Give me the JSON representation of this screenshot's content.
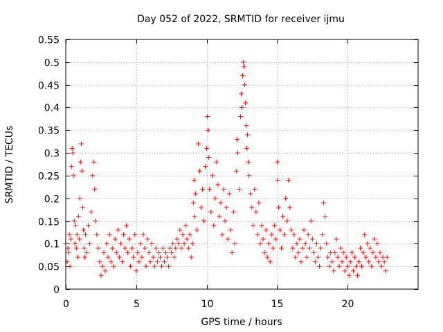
{
  "chart_data": {
    "type": "scatter",
    "title": "Day 052 of 2022, SRMTID for receiver ijmu",
    "xlabel": "GPS time / hours",
    "ylabel": "SRMTID / TECUs",
    "xlim": [
      0,
      25
    ],
    "ylim": [
      0,
      0.55
    ],
    "xticks": [
      0,
      5,
      10,
      15,
      20
    ],
    "yticks": [
      0,
      0.05,
      0.1,
      0.15,
      0.2,
      0.25,
      0.3,
      0.35,
      0.4,
      0.45,
      0.5,
      0.55
    ],
    "xtick_labels": [
      "0",
      "5",
      "10",
      "15",
      "20"
    ],
    "ytick_labels": [
      "0",
      "0.05",
      "0.1",
      "0.15",
      "0.2",
      "0.25",
      "0.3",
      "0.35",
      "0.4",
      "0.45",
      "0.5",
      "0.55"
    ],
    "grid": true,
    "marker": "+",
    "color": "#ff0000",
    "series": [
      {
        "name": "SRMTID",
        "points": [
          [
            0.0,
            0.1
          ],
          [
            0.1,
            0.06
          ],
          [
            0.15,
            0.09
          ],
          [
            0.2,
            0.08
          ],
          [
            0.25,
            0.12
          ],
          [
            0.3,
            0.05
          ],
          [
            0.35,
            0.11
          ],
          [
            0.4,
            0.27
          ],
          [
            0.45,
            0.31
          ],
          [
            0.5,
            0.3
          ],
          [
            0.55,
            0.25
          ],
          [
            0.6,
            0.15
          ],
          [
            0.65,
            0.1
          ],
          [
            0.7,
            0.14
          ],
          [
            0.75,
            0.09
          ],
          [
            0.8,
            0.12
          ],
          [
            0.85,
            0.07
          ],
          [
            0.9,
            0.16
          ],
          [
            0.95,
            0.11
          ],
          [
            1.0,
            0.2
          ],
          [
            1.05,
            0.28
          ],
          [
            1.1,
            0.32
          ],
          [
            1.15,
            0.26
          ],
          [
            1.2,
            0.18
          ],
          [
            1.25,
            0.13
          ],
          [
            1.3,
            0.09
          ],
          [
            1.35,
            0.07
          ],
          [
            1.4,
            0.12
          ],
          [
            1.5,
            0.08
          ],
          [
            1.6,
            0.14
          ],
          [
            1.7,
            0.1
          ],
          [
            1.8,
            0.17
          ],
          [
            1.9,
            0.25
          ],
          [
            2.0,
            0.28
          ],
          [
            2.05,
            0.22
          ],
          [
            2.1,
            0.15
          ],
          [
            2.2,
            0.12
          ],
          [
            2.3,
            0.09
          ],
          [
            2.4,
            0.06
          ],
          [
            2.5,
            0.03
          ],
          [
            2.6,
            0.05
          ],
          [
            2.7,
            0.08
          ],
          [
            2.8,
            0.04
          ],
          [
            2.9,
            0.1
          ],
          [
            3.0,
            0.07
          ],
          [
            3.1,
            0.12
          ],
          [
            3.2,
            0.06
          ],
          [
            3.3,
            0.09
          ],
          [
            3.4,
            0.05
          ],
          [
            3.5,
            0.11
          ],
          [
            3.6,
            0.08
          ],
          [
            3.7,
            0.13
          ],
          [
            3.8,
            0.07
          ],
          [
            3.9,
            0.1
          ],
          [
            4.0,
            0.06
          ],
          [
            4.1,
            0.12
          ],
          [
            4.2,
            0.09
          ],
          [
            4.3,
            0.14
          ],
          [
            4.4,
            0.08
          ],
          [
            4.5,
            0.11
          ],
          [
            4.6,
            0.05
          ],
          [
            4.7,
            0.09
          ],
          [
            4.8,
            0.07
          ],
          [
            4.9,
            0.12
          ],
          [
            5.0,
            0.04
          ],
          [
            5.1,
            0.08
          ],
          [
            5.2,
            0.06
          ],
          [
            5.3,
            0.1
          ],
          [
            5.4,
            0.07
          ],
          [
            5.5,
            0.12
          ],
          [
            5.6,
            0.09
          ],
          [
            5.7,
            0.05
          ],
          [
            5.8,
            0.11
          ],
          [
            5.9,
            0.08
          ],
          [
            6.0,
            0.06
          ],
          [
            6.1,
            0.1
          ],
          [
            6.2,
            0.07
          ],
          [
            6.3,
            0.05
          ],
          [
            6.4,
            0.09
          ],
          [
            6.5,
            0.06
          ],
          [
            6.6,
            0.08
          ],
          [
            6.7,
            0.07
          ],
          [
            6.8,
            0.05
          ],
          [
            6.9,
            0.09
          ],
          [
            7.0,
            0.06
          ],
          [
            7.1,
            0.08
          ],
          [
            7.2,
            0.07
          ],
          [
            7.3,
            0.05
          ],
          [
            7.4,
            0.09
          ],
          [
            7.5,
            0.08
          ],
          [
            7.6,
            0.1
          ],
          [
            7.7,
            0.07
          ],
          [
            7.8,
            0.09
          ],
          [
            7.9,
            0.11
          ],
          [
            8.0,
            0.1
          ],
          [
            8.1,
            0.13
          ],
          [
            8.2,
            0.09
          ],
          [
            8.3,
            0.12
          ],
          [
            8.4,
            0.1
          ],
          [
            8.5,
            0.14
          ],
          [
            8.6,
            0.11
          ],
          [
            8.7,
            0.09
          ],
          [
            8.8,
            0.12
          ],
          [
            8.9,
            0.07
          ],
          [
            9.0,
            0.1
          ],
          [
            9.05,
            0.19
          ],
          [
            9.1,
            0.24
          ],
          [
            9.15,
            0.16
          ],
          [
            9.2,
            0.21
          ],
          [
            9.3,
            0.13
          ],
          [
            9.4,
            0.32
          ],
          [
            9.5,
            0.26
          ],
          [
            9.6,
            0.18
          ],
          [
            9.7,
            0.22
          ],
          [
            9.8,
            0.15
          ],
          [
            9.9,
            0.27
          ],
          [
            10.0,
            0.31
          ],
          [
            10.05,
            0.38
          ],
          [
            10.1,
            0.35
          ],
          [
            10.15,
            0.29
          ],
          [
            10.2,
            0.22
          ],
          [
            10.3,
            0.17
          ],
          [
            10.4,
            0.25
          ],
          [
            10.5,
            0.14
          ],
          [
            10.6,
            0.2
          ],
          [
            10.7,
            0.28
          ],
          [
            10.8,
            0.23
          ],
          [
            10.9,
            0.16
          ],
          [
            11.0,
            0.19
          ],
          [
            11.1,
            0.12
          ],
          [
            11.2,
            0.22
          ],
          [
            11.3,
            0.15
          ],
          [
            11.4,
            0.18
          ],
          [
            11.5,
            0.11
          ],
          [
            11.6,
            0.21
          ],
          [
            11.7,
            0.13
          ],
          [
            11.8,
            0.08
          ],
          [
            11.9,
            0.17
          ],
          [
            12.0,
            0.1
          ],
          [
            12.1,
            0.26
          ],
          [
            12.15,
            0.33
          ],
          [
            12.2,
            0.3
          ],
          [
            12.3,
            0.22
          ],
          [
            12.4,
            0.38
          ],
          [
            12.45,
            0.43
          ],
          [
            12.5,
            0.4
          ],
          [
            12.55,
            0.47
          ],
          [
            12.6,
            0.5
          ],
          [
            12.65,
            0.49
          ],
          [
            12.7,
            0.45
          ],
          [
            12.75,
            0.41
          ],
          [
            12.8,
            0.36
          ],
          [
            12.85,
            0.31
          ],
          [
            12.9,
            0.34
          ],
          [
            12.95,
            0.28
          ],
          [
            13.0,
            0.25
          ],
          [
            13.1,
            0.21
          ],
          [
            13.2,
            0.18
          ],
          [
            13.3,
            0.14
          ],
          [
            13.4,
            0.22
          ],
          [
            13.5,
            0.17
          ],
          [
            13.6,
            0.12
          ],
          [
            13.7,
            0.19
          ],
          [
            13.8,
            0.1
          ],
          [
            13.9,
            0.14
          ],
          [
            14.0,
            0.11
          ],
          [
            14.1,
            0.08
          ],
          [
            14.2,
            0.13
          ],
          [
            14.3,
            0.07
          ],
          [
            14.4,
            0.1
          ],
          [
            14.5,
            0.06
          ],
          [
            14.6,
            0.12
          ],
          [
            14.7,
            0.09
          ],
          [
            14.8,
            0.14
          ],
          [
            14.9,
            0.11
          ],
          [
            15.0,
            0.28
          ],
          [
            15.05,
            0.24
          ],
          [
            15.1,
            0.18
          ],
          [
            15.2,
            0.13
          ],
          [
            15.3,
            0.09
          ],
          [
            15.4,
            0.16
          ],
          [
            15.5,
            0.12
          ],
          [
            15.6,
            0.2
          ],
          [
            15.7,
            0.15
          ],
          [
            15.8,
            0.24
          ],
          [
            15.9,
            0.18
          ],
          [
            16.0,
            0.13
          ],
          [
            16.1,
            0.09
          ],
          [
            16.2,
            0.12
          ],
          [
            16.3,
            0.07
          ],
          [
            16.4,
            0.1
          ],
          [
            16.5,
            0.08
          ],
          [
            16.6,
            0.11
          ],
          [
            16.7,
            0.06
          ],
          [
            16.8,
            0.09
          ],
          [
            16.9,
            0.13
          ],
          [
            17.0,
            0.1
          ],
          [
            17.1,
            0.07
          ],
          [
            17.2,
            0.12
          ],
          [
            17.3,
            0.09
          ],
          [
            17.4,
            0.15
          ],
          [
            17.5,
            0.11
          ],
          [
            17.6,
            0.08
          ],
          [
            17.7,
            0.06
          ],
          [
            17.8,
            0.1
          ],
          [
            17.9,
            0.07
          ],
          [
            18.0,
            0.05
          ],
          [
            18.1,
            0.09
          ],
          [
            18.2,
            0.12
          ],
          [
            18.3,
            0.19
          ],
          [
            18.4,
            0.16
          ],
          [
            18.5,
            0.1
          ],
          [
            18.6,
            0.07
          ],
          [
            18.7,
            0.05
          ],
          [
            18.8,
            0.08
          ],
          [
            18.9,
            0.06
          ],
          [
            19.0,
            0.04
          ],
          [
            19.1,
            0.08
          ],
          [
            19.2,
            0.11
          ],
          [
            19.3,
            0.07
          ],
          [
            19.4,
            0.05
          ],
          [
            19.5,
            0.09
          ],
          [
            19.6,
            0.06
          ],
          [
            19.7,
            0.08
          ],
          [
            19.8,
            0.04
          ],
          [
            19.9,
            0.07
          ],
          [
            20.0,
            0.05
          ],
          [
            20.1,
            0.03
          ],
          [
            20.2,
            0.06
          ],
          [
            20.3,
            0.08
          ],
          [
            20.4,
            0.04
          ],
          [
            20.5,
            0.07
          ],
          [
            20.6,
            0.05
          ],
          [
            20.7,
            0.03
          ],
          [
            20.8,
            0.06
          ],
          [
            20.9,
            0.09
          ],
          [
            21.0,
            0.05
          ],
          [
            21.1,
            0.08
          ],
          [
            21.2,
            0.12
          ],
          [
            21.3,
            0.07
          ],
          [
            21.4,
            0.1
          ],
          [
            21.5,
            0.06
          ],
          [
            21.6,
            0.09
          ],
          [
            21.7,
            0.05
          ],
          [
            21.8,
            0.08
          ],
          [
            21.9,
            0.11
          ],
          [
            22.0,
            0.07
          ],
          [
            22.1,
            0.1
          ],
          [
            22.2,
            0.06
          ],
          [
            22.3,
            0.08
          ],
          [
            22.4,
            0.05
          ],
          [
            22.5,
            0.07
          ],
          [
            22.6,
            0.06
          ],
          [
            22.7,
            0.04
          ],
          [
            22.8,
            0.07
          ]
        ]
      }
    ]
  }
}
